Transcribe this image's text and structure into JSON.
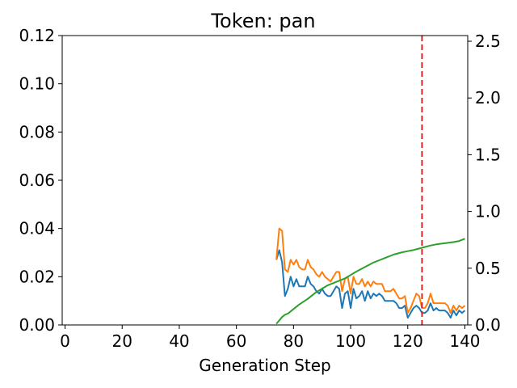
{
  "chart_data": {
    "type": "line",
    "title": "Token: pan",
    "xlabel": "Generation Step",
    "ylabel": "",
    "xlim": [
      -1,
      141
    ],
    "ylim": [
      0,
      0.12
    ],
    "y2lim": [
      0,
      2.55
    ],
    "grid": false,
    "x_ticks": [
      0,
      20,
      40,
      60,
      80,
      100,
      120,
      140
    ],
    "y_ticks": [
      0.0,
      0.02,
      0.04,
      0.06,
      0.08,
      0.1,
      0.12
    ],
    "y_tick_labels": [
      "0.00",
      "0.02",
      "0.04",
      "0.06",
      "0.08",
      "0.10",
      "0.12"
    ],
    "y2_ticks": [
      0.0,
      0.5,
      1.0,
      1.5,
      2.0,
      2.5
    ],
    "y2_tick_labels": [
      "0.0",
      "0.5",
      "1.0",
      "1.5",
      "2.0",
      "2.5"
    ],
    "vline": {
      "x": 125,
      "color": "#d62728",
      "style": "dashed"
    },
    "series": [
      {
        "color": "#1f77b4",
        "axis": "left",
        "x": [
          74,
          75,
          76,
          77,
          78,
          79,
          80,
          81,
          82,
          83,
          84,
          85,
          86,
          87,
          88,
          89,
          90,
          91,
          92,
          93,
          94,
          95,
          96,
          97,
          98,
          99,
          100,
          101,
          102,
          103,
          104,
          105,
          106,
          107,
          108,
          109,
          110,
          111,
          112,
          113,
          114,
          115,
          116,
          117,
          118,
          119,
          120,
          121,
          122,
          123,
          124,
          125,
          126,
          127,
          128,
          129,
          130,
          131,
          132,
          133,
          134,
          135,
          136,
          137,
          138,
          139,
          140
        ],
        "values": [
          0.027,
          0.031,
          0.026,
          0.012,
          0.015,
          0.02,
          0.016,
          0.019,
          0.016,
          0.016,
          0.016,
          0.02,
          0.017,
          0.016,
          0.014,
          0.013,
          0.015,
          0.013,
          0.012,
          0.012,
          0.014,
          0.016,
          0.015,
          0.007,
          0.013,
          0.014,
          0.007,
          0.015,
          0.011,
          0.012,
          0.014,
          0.01,
          0.014,
          0.011,
          0.013,
          0.012,
          0.013,
          0.012,
          0.01,
          0.01,
          0.01,
          0.01,
          0.009,
          0.007,
          0.007,
          0.008,
          0.003,
          0.005,
          0.007,
          0.008,
          0.007,
          0.005,
          0.005,
          0.006,
          0.009,
          0.006,
          0.007,
          0.006,
          0.006,
          0.006,
          0.005,
          0.003,
          0.006,
          0.004,
          0.006,
          0.005,
          0.006
        ]
      },
      {
        "color": "#ff7f0e",
        "axis": "left",
        "x": [
          74,
          75,
          76,
          77,
          78,
          79,
          80,
          81,
          82,
          83,
          84,
          85,
          86,
          87,
          88,
          89,
          90,
          91,
          92,
          93,
          94,
          95,
          96,
          97,
          98,
          99,
          100,
          101,
          102,
          103,
          104,
          105,
          106,
          107,
          108,
          109,
          110,
          111,
          112,
          113,
          114,
          115,
          116,
          117,
          118,
          119,
          120,
          121,
          122,
          123,
          124,
          125,
          126,
          127,
          128,
          129,
          130,
          131,
          132,
          133,
          134,
          135,
          136,
          137,
          138,
          139,
          140
        ],
        "values": [
          0.027,
          0.04,
          0.039,
          0.023,
          0.022,
          0.027,
          0.025,
          0.027,
          0.024,
          0.023,
          0.023,
          0.027,
          0.024,
          0.023,
          0.021,
          0.02,
          0.022,
          0.02,
          0.019,
          0.018,
          0.02,
          0.022,
          0.022,
          0.014,
          0.019,
          0.02,
          0.013,
          0.02,
          0.017,
          0.017,
          0.019,
          0.016,
          0.018,
          0.016,
          0.018,
          0.017,
          0.017,
          0.017,
          0.014,
          0.014,
          0.014,
          0.015,
          0.013,
          0.011,
          0.011,
          0.012,
          0.005,
          0.007,
          0.01,
          0.013,
          0.012,
          0.007,
          0.007,
          0.009,
          0.013,
          0.009,
          0.009,
          0.009,
          0.009,
          0.009,
          0.008,
          0.005,
          0.008,
          0.006,
          0.008,
          0.007,
          0.008
        ]
      },
      {
        "color": "#2ca02c",
        "axis": "right",
        "x": [
          74,
          75,
          76,
          77,
          78,
          80,
          82,
          85,
          88,
          90,
          92,
          95,
          98,
          100,
          102,
          105,
          108,
          110,
          112,
          115,
          118,
          120,
          122,
          125,
          128,
          130,
          133,
          136,
          138,
          140
        ],
        "values": [
          0.01,
          0.04,
          0.07,
          0.09,
          0.1,
          0.14,
          0.18,
          0.23,
          0.29,
          0.32,
          0.35,
          0.38,
          0.41,
          0.44,
          0.47,
          0.51,
          0.55,
          0.57,
          0.59,
          0.62,
          0.64,
          0.65,
          0.66,
          0.68,
          0.7,
          0.71,
          0.72,
          0.73,
          0.74,
          0.76
        ]
      }
    ]
  }
}
